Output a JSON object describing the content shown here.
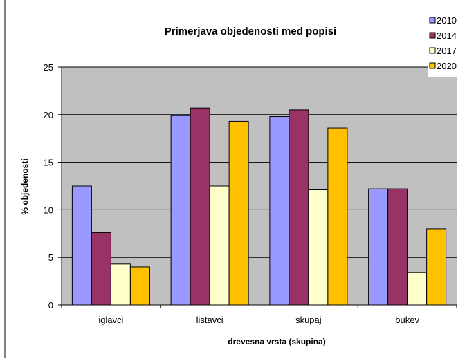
{
  "chart_data": {
    "type": "bar",
    "title": "Primerjava objedenosti med popisi",
    "xlabel": "drevesna vrsta (skupina)",
    "ylabel": "% objedenosti",
    "categories": [
      "iglavci",
      "listavci",
      "skupaj",
      "bukev"
    ],
    "series": [
      {
        "name": "2010",
        "color": "#9999ff",
        "values": [
          12.5,
          19.9,
          19.8,
          12.2
        ]
      },
      {
        "name": "2014",
        "color": "#993366",
        "values": [
          7.6,
          20.7,
          20.5,
          12.2
        ]
      },
      {
        "name": "2017",
        "color": "#ffffcc",
        "values": [
          4.3,
          12.5,
          12.1,
          3.4
        ]
      },
      {
        "name": "2020",
        "color": "#ffc000",
        "values": [
          4.0,
          19.3,
          18.6,
          8.0
        ]
      }
    ],
    "ylim": [
      0,
      25
    ],
    "yticks": [
      0,
      5,
      10,
      15,
      20,
      25
    ],
    "grid": true,
    "legend": "top-right",
    "plot_background": "#c0c0c0"
  }
}
